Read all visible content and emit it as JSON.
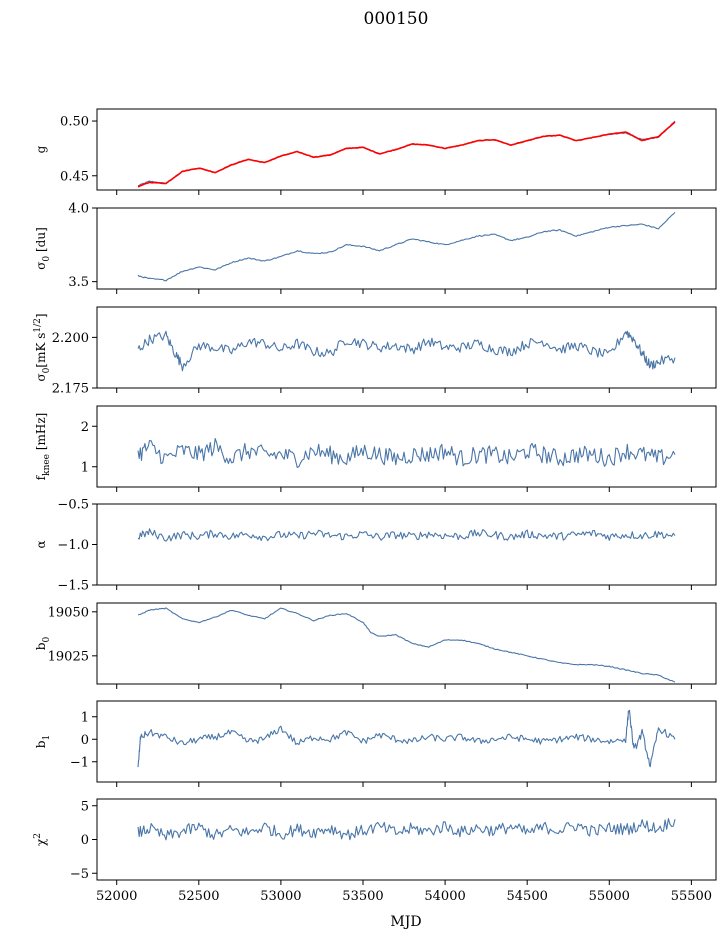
{
  "figure": {
    "title": "000150",
    "xlabel": "MJD"
  },
  "chart_data": [
    {
      "type": "line",
      "ylabel": "g",
      "xlim": [
        51880,
        55650
      ],
      "ylim": [
        0.437,
        0.511
      ],
      "yticks": [
        0.45,
        0.5
      ],
      "ytick_labels": [
        "0.45",
        "0.50"
      ],
      "x": [
        52130,
        52200,
        52300,
        52400,
        52500,
        52600,
        52700,
        52800,
        52900,
        53000,
        53100,
        53200,
        53300,
        53400,
        53500,
        53600,
        53700,
        53800,
        53900,
        54000,
        54100,
        54200,
        54300,
        54400,
        54500,
        54600,
        54700,
        54800,
        54900,
        55000,
        55100,
        55150,
        55200,
        55300,
        55400
      ],
      "series": [
        {
          "values": [
            0.441,
            0.445,
            0.443,
            0.454,
            0.457,
            0.453,
            0.46,
            0.465,
            0.462,
            0.468,
            0.472,
            0.467,
            0.469,
            0.475,
            0.476,
            0.47,
            0.474,
            0.479,
            0.478,
            0.475,
            0.478,
            0.482,
            0.483,
            0.478,
            0.482,
            0.486,
            0.487,
            0.482,
            0.485,
            0.488,
            0.489,
            0.486,
            0.483,
            0.485,
            0.5
          ],
          "color": "#4a76a8"
        },
        {
          "values": [
            0.44,
            0.444,
            0.443,
            0.454,
            0.457,
            0.453,
            0.46,
            0.465,
            0.462,
            0.468,
            0.472,
            0.467,
            0.469,
            0.475,
            0.476,
            0.47,
            0.474,
            0.479,
            0.478,
            0.475,
            0.478,
            0.482,
            0.483,
            0.478,
            0.482,
            0.486,
            0.487,
            0.482,
            0.485,
            0.488,
            0.49,
            0.486,
            0.482,
            0.486,
            0.499
          ],
          "color": "#ff0000"
        }
      ]
    },
    {
      "type": "line",
      "ylabel": "σ0 [du]",
      "xlim": [
        51880,
        55650
      ],
      "ylim": [
        3.45,
        4.0
      ],
      "yticks": [
        3.5,
        4.0
      ],
      "ytick_labels": [
        "3.5",
        "4.0"
      ],
      "x": [
        52130,
        52200,
        52300,
        52400,
        52500,
        52600,
        52700,
        52800,
        52900,
        53000,
        53100,
        53200,
        53300,
        53400,
        53500,
        53600,
        53700,
        53800,
        53900,
        54000,
        54100,
        54200,
        54300,
        54400,
        54500,
        54600,
        54700,
        54800,
        54900,
        55000,
        55100,
        55200,
        55300,
        55400
      ],
      "series": [
        {
          "values": [
            3.54,
            3.52,
            3.51,
            3.57,
            3.6,
            3.58,
            3.63,
            3.66,
            3.64,
            3.67,
            3.71,
            3.69,
            3.7,
            3.75,
            3.74,
            3.71,
            3.75,
            3.79,
            3.77,
            3.75,
            3.78,
            3.81,
            3.82,
            3.78,
            3.8,
            3.84,
            3.85,
            3.81,
            3.84,
            3.87,
            3.88,
            3.89,
            3.86,
            3.97
          ],
          "color": "#4a76a8"
        }
      ]
    },
    {
      "type": "line",
      "ylabel": "σ0[mK s^1/2]",
      "xlim": [
        51880,
        55650
      ],
      "ylim": [
        2.175,
        2.215
      ],
      "yticks": [
        2.175,
        2.2
      ],
      "ytick_labels": [
        "2.175",
        "2.200"
      ],
      "x": [
        52130,
        52200,
        52300,
        52350,
        52400,
        52500,
        52600,
        52700,
        52800,
        52900,
        53000,
        53100,
        53200,
        53300,
        53400,
        53500,
        53600,
        53700,
        53800,
        53900,
        54000,
        54100,
        54200,
        54300,
        54400,
        54500,
        54600,
        54700,
        54800,
        54900,
        55000,
        55100,
        55150,
        55200,
        55250,
        55300,
        55400
      ],
      "series": [
        {
          "values": [
            2.194,
            2.199,
            2.201,
            2.193,
            2.186,
            2.196,
            2.195,
            2.193,
            2.198,
            2.197,
            2.194,
            2.197,
            2.193,
            2.192,
            2.199,
            2.197,
            2.195,
            2.196,
            2.194,
            2.198,
            2.195,
            2.195,
            2.197,
            2.194,
            2.193,
            2.197,
            2.198,
            2.194,
            2.196,
            2.193,
            2.191,
            2.203,
            2.199,
            2.192,
            2.186,
            2.188,
            2.19
          ],
          "color": "#4a76a8"
        }
      ]
    },
    {
      "type": "line",
      "ylabel": "f_knee [mHz]",
      "xlim": [
        51880,
        55650
      ],
      "ylim": [
        0.5,
        2.5
      ],
      "yticks": [
        1,
        2
      ],
      "ytick_labels": [
        "1",
        "2"
      ],
      "x": [
        52130,
        52200,
        52300,
        52400,
        52500,
        52600,
        52700,
        52800,
        52900,
        53000,
        53100,
        53200,
        53300,
        53400,
        53500,
        53600,
        53700,
        53800,
        53900,
        54000,
        54100,
        54200,
        54300,
        54400,
        54500,
        54600,
        54700,
        54800,
        54900,
        55000,
        55100,
        55200,
        55300,
        55400
      ],
      "series": [
        {
          "values": [
            1.3,
            1.5,
            1.2,
            1.4,
            1.3,
            1.5,
            1.2,
            1.4,
            1.3,
            1.3,
            1.2,
            1.4,
            1.3,
            1.2,
            1.4,
            1.3,
            1.2,
            1.3,
            1.3,
            1.4,
            1.2,
            1.3,
            1.3,
            1.2,
            1.4,
            1.3,
            1.2,
            1.3,
            1.3,
            1.2,
            1.4,
            1.3,
            1.2,
            1.3
          ],
          "color": "#4a76a8"
        }
      ]
    },
    {
      "type": "line",
      "ylabel": "α",
      "xlim": [
        51880,
        55650
      ],
      "ylim": [
        -1.5,
        -0.5
      ],
      "yticks": [
        -1.5,
        -1.0,
        -0.5
      ],
      "ytick_labels": [
        "−1.5",
        "−1.0",
        "−0.5"
      ],
      "x": [
        52130,
        52200,
        52300,
        52400,
        52500,
        52600,
        52700,
        52800,
        52900,
        53000,
        53100,
        53200,
        53300,
        53400,
        53500,
        53600,
        53700,
        53800,
        53900,
        54000,
        54100,
        54200,
        54300,
        54400,
        54500,
        54600,
        54700,
        54800,
        54900,
        55000,
        55100,
        55200,
        55300,
        55400
      ],
      "series": [
        {
          "values": [
            -0.9,
            -0.85,
            -0.92,
            -0.88,
            -0.9,
            -0.86,
            -0.9,
            -0.87,
            -0.91,
            -0.88,
            -0.9,
            -0.86,
            -0.89,
            -0.9,
            -0.87,
            -0.91,
            -0.88,
            -0.9,
            -0.87,
            -0.89,
            -0.9,
            -0.86,
            -0.88,
            -0.91,
            -0.87,
            -0.89,
            -0.9,
            -0.88,
            -0.86,
            -0.9,
            -0.88,
            -0.89,
            -0.87,
            -0.89
          ],
          "color": "#4a76a8"
        }
      ]
    },
    {
      "type": "line",
      "ylabel": "b0",
      "xlim": [
        51880,
        55650
      ],
      "ylim": [
        19009,
        19055
      ],
      "yticks": [
        19025,
        19050
      ],
      "ytick_labels": [
        "19025",
        "19050"
      ],
      "x": [
        52130,
        52200,
        52300,
        52400,
        52500,
        52600,
        52700,
        52800,
        52900,
        53000,
        53100,
        53200,
        53300,
        53400,
        53500,
        53550,
        53600,
        53700,
        53800,
        53900,
        54000,
        54100,
        54200,
        54300,
        54400,
        54500,
        54600,
        54700,
        54800,
        54900,
        55000,
        55100,
        55200,
        55300,
        55400
      ],
      "series": [
        {
          "values": [
            19048,
            19051,
            19052,
            19046,
            19044,
            19047,
            19051,
            19048,
            19046,
            19052,
            19049,
            19045,
            19048,
            19049,
            19044,
            19038,
            19036,
            19037,
            19032,
            19030,
            19034,
            19034,
            19032,
            19029,
            19027,
            19025,
            19023,
            19021,
            19020,
            19020,
            19019,
            19017,
            19015,
            19014,
            19010
          ],
          "color": "#4a76a8"
        }
      ]
    },
    {
      "type": "line",
      "ylabel": "b1",
      "xlim": [
        51880,
        55650
      ],
      "ylim": [
        -1.9,
        1.7
      ],
      "yticks": [
        -1,
        0,
        1
      ],
      "ytick_labels": [
        "−1",
        "0",
        "1"
      ],
      "x": [
        52130,
        52145,
        52200,
        52300,
        52400,
        52500,
        52600,
        52700,
        52800,
        52900,
        53000,
        53100,
        53200,
        53300,
        53400,
        53500,
        53600,
        53700,
        53800,
        53900,
        54000,
        54100,
        54200,
        54300,
        54400,
        54500,
        54600,
        54700,
        54800,
        54900,
        55000,
        55100,
        55120,
        55150,
        55200,
        55250,
        55300,
        55400
      ],
      "series": [
        {
          "values": [
            -1.3,
            0.1,
            0.3,
            0.1,
            -0.2,
            0.0,
            0.1,
            0.3,
            -0.1,
            0.0,
            0.5,
            -0.2,
            0.1,
            0.0,
            0.3,
            -0.1,
            0.2,
            0.0,
            -0.1,
            0.1,
            0.0,
            0.1,
            -0.1,
            0.0,
            0.1,
            0.0,
            -0.1,
            0.0,
            0.1,
            0.0,
            -0.1,
            0.0,
            1.4,
            -0.5,
            0.3,
            -1.2,
            0.5,
            0.0
          ],
          "color": "#4a76a8"
        }
      ]
    },
    {
      "type": "line",
      "ylabel": "χ²",
      "xlim": [
        51880,
        55650
      ],
      "ylim": [
        -6,
        6
      ],
      "yticks": [
        -5,
        0,
        5
      ],
      "ytick_labels": [
        "−5",
        "0",
        "5"
      ],
      "xticks": [
        52000,
        52500,
        53000,
        53500,
        54000,
        54500,
        55000,
        55500
      ],
      "xtick_labels": [
        "52000",
        "52500",
        "53000",
        "53500",
        "54000",
        "54500",
        "55000",
        "55500"
      ],
      "x": [
        52130,
        52200,
        52300,
        52400,
        52500,
        52600,
        52700,
        52800,
        52900,
        53000,
        53100,
        53200,
        53300,
        53400,
        53500,
        53600,
        53700,
        53800,
        53900,
        54000,
        54100,
        54200,
        54300,
        54400,
        54500,
        54600,
        54700,
        54800,
        54900,
        55000,
        55100,
        55200,
        55300,
        55400
      ],
      "series": [
        {
          "values": [
            1.0,
            1.6,
            0.4,
            1.2,
            1.8,
            0.6,
            1.4,
            1.0,
            1.9,
            0.8,
            1.5,
            1.1,
            1.7,
            0.7,
            1.3,
            1.9,
            1.0,
            1.6,
            1.2,
            2.0,
            1.1,
            1.7,
            1.3,
            1.9,
            1.0,
            1.8,
            1.4,
            2.1,
            1.2,
            1.7,
            1.5,
            2.2,
            1.6,
            3.0
          ],
          "color": "#4a76a8"
        }
      ]
    }
  ]
}
